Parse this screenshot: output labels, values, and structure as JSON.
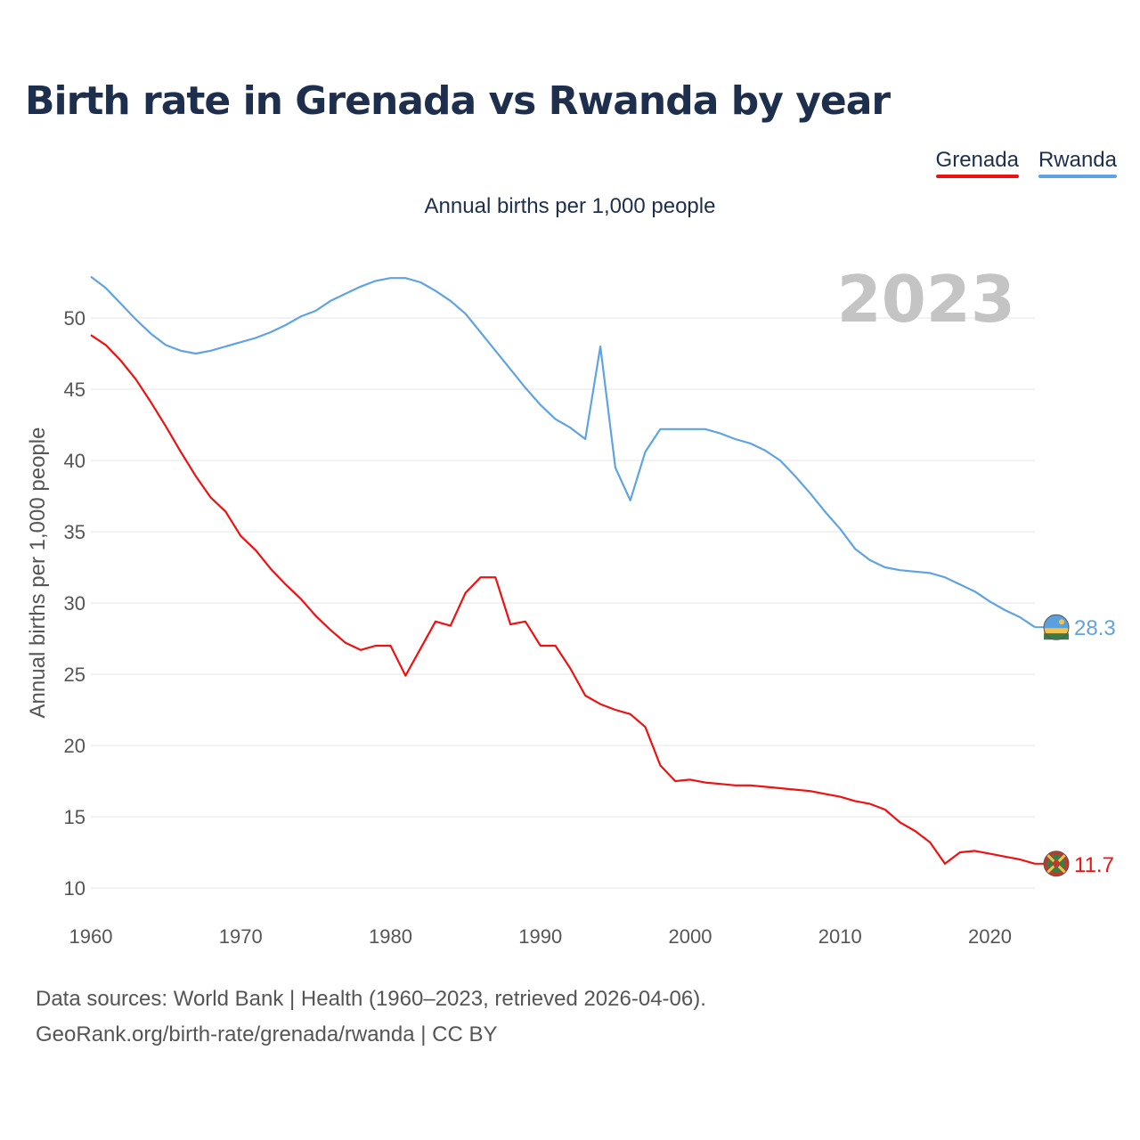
{
  "title": "Birth rate in Grenada vs Rwanda by year",
  "legend": {
    "items": [
      {
        "label": "Grenada",
        "color": "#ee1111"
      },
      {
        "label": "Rwanda",
        "color": "#5fa3e3"
      }
    ]
  },
  "footer": {
    "line1": "Data sources: World Bank | Health (1960–2023, retrieved 2026-04-06).",
    "line2": "GeoRank.org/birth-rate/grenada/rwanda | CC BY"
  },
  "chart_data": {
    "type": "line",
    "title": "Birth rate in Grenada vs Rwanda by year",
    "subtitle": "Annual births per 1,000 people",
    "xlabel": "",
    "ylabel": "Annual births per 1,000 people",
    "year_label": "2023",
    "xlim": [
      1960,
      2023
    ],
    "ylim": [
      10,
      53
    ],
    "x_ticks": [
      1960,
      1970,
      1980,
      1990,
      2000,
      2010,
      2020
    ],
    "y_ticks": [
      10,
      15,
      20,
      25,
      30,
      35,
      40,
      45,
      50
    ],
    "grid": true,
    "legend_position": "top-right",
    "x": [
      1960,
      1961,
      1962,
      1963,
      1964,
      1965,
      1966,
      1967,
      1968,
      1969,
      1970,
      1971,
      1972,
      1973,
      1974,
      1975,
      1976,
      1977,
      1978,
      1979,
      1980,
      1981,
      1982,
      1983,
      1984,
      1985,
      1986,
      1987,
      1988,
      1989,
      1990,
      1991,
      1992,
      1993,
      1994,
      1995,
      1996,
      1997,
      1998,
      1999,
      2000,
      2001,
      2002,
      2003,
      2004,
      2005,
      2006,
      2007,
      2008,
      2009,
      2010,
      2011,
      2012,
      2013,
      2014,
      2015,
      2016,
      2017,
      2018,
      2019,
      2020,
      2021,
      2022,
      2023
    ],
    "series": [
      {
        "name": "Grenada",
        "color": "#ee1111",
        "end_label": "11.7",
        "values": [
          48.8,
          48.1,
          47.0,
          45.7,
          44.1,
          42.4,
          40.6,
          38.9,
          37.4,
          36.4,
          34.7,
          33.7,
          32.4,
          31.3,
          30.3,
          29.1,
          28.1,
          27.2,
          26.7,
          27.0,
          27.0,
          24.9,
          26.8,
          28.7,
          28.4,
          30.7,
          31.8,
          31.8,
          28.5,
          28.7,
          27.0,
          27.0,
          25.4,
          23.5,
          22.9,
          22.5,
          22.2,
          21.3,
          18.6,
          17.5,
          17.6,
          17.4,
          17.3,
          17.2,
          17.2,
          17.1,
          17.0,
          16.9,
          16.8,
          16.6,
          16.4,
          16.1,
          15.9,
          15.5,
          14.6,
          14.0,
          13.2,
          11.7,
          12.5,
          12.6,
          12.4,
          12.2,
          12.0,
          11.7
        ]
      },
      {
        "name": "Rwanda",
        "color": "#5fa3e3",
        "end_label": "28.3",
        "values": [
          52.9,
          52.1,
          51.0,
          49.9,
          48.9,
          48.1,
          47.7,
          47.5,
          47.7,
          48.0,
          48.3,
          48.6,
          49.0,
          49.5,
          50.1,
          50.5,
          51.2,
          51.7,
          52.2,
          52.6,
          52.8,
          52.8,
          52.5,
          51.9,
          51.2,
          50.3,
          49.0,
          47.7,
          46.4,
          45.1,
          43.9,
          42.9,
          42.3,
          41.5,
          48.0,
          39.5,
          37.2,
          40.6,
          42.2,
          42.2,
          42.2,
          42.2,
          41.9,
          41.5,
          41.2,
          40.7,
          40.0,
          38.9,
          37.7,
          36.4,
          35.2,
          33.8,
          33.0,
          32.5,
          32.3,
          32.2,
          32.1,
          31.8,
          31.3,
          30.8,
          30.1,
          29.5,
          29.0,
          28.3
        ]
      }
    ]
  }
}
